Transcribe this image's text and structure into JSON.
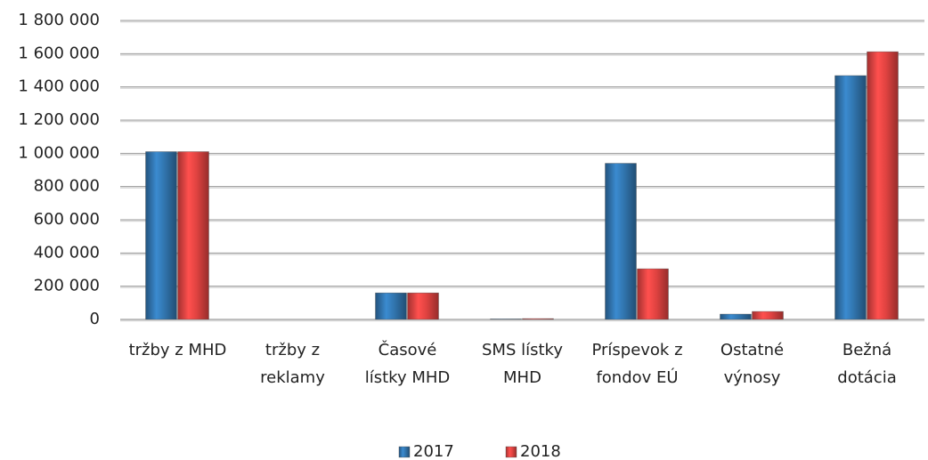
{
  "chart_data": {
    "type": "bar",
    "categories": [
      "tržby z MHD",
      "tržby z\nreklamy",
      "Časové\nlístky MHD",
      "SMS lístky\nMHD",
      "Príspevok z\nfondov EÚ",
      "Ostatné\nvýnosy",
      "Bežná\ndotácia"
    ],
    "series": [
      {
        "name": "2017",
        "color": "#2f6fa6",
        "values": [
          1010000,
          0,
          160000,
          3000,
          940000,
          32000,
          1468000
        ]
      },
      {
        "name": "2018",
        "color": "#d6403e",
        "values": [
          1010000,
          0,
          160000,
          5000,
          305000,
          48000,
          1612000
        ]
      }
    ],
    "ylim": [
      0,
      1800000
    ],
    "yticks": [
      0,
      {
        "value": 200000,
        "label": "200 000"
      },
      {
        "value": 400000,
        "label": "400 000"
      },
      {
        "value": 600000,
        "label": "600 000"
      },
      {
        "value": 800000,
        "label": "800 000"
      },
      {
        "value": 1000000,
        "label": "1 000 000"
      },
      {
        "value": 1200000,
        "label": "1 200 000"
      },
      {
        "value": 1400000,
        "label": "1 400 000"
      },
      {
        "value": 1600000,
        "label": "1 600 000"
      },
      {
        "value": 1800000,
        "label": "1 800 000"
      }
    ],
    "grid": true,
    "legend": "bottom"
  }
}
